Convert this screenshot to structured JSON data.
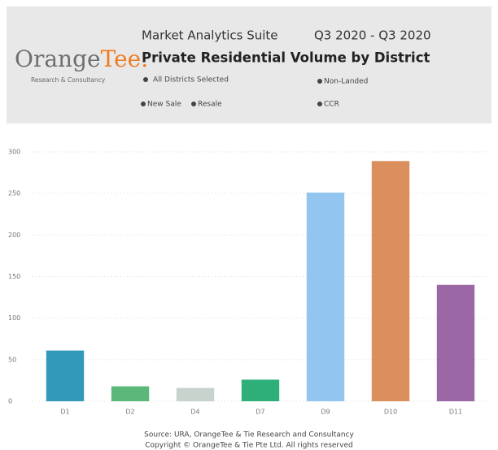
{
  "header": {
    "logo_part1": "Orange",
    "logo_part2": "Tee.",
    "logo_subtitle": "Research & Consultancy",
    "suite": "Market Analytics Suite",
    "period": "Q3 2020 - Q3 2020",
    "filters": [
      "All Districts Selected",
      "Non-Landed",
      "New Sale",
      "Resale",
      "CCR"
    ]
  },
  "chart_data": {
    "type": "bar",
    "title": "Private Residential Volume by District",
    "categories": [
      "D1",
      "D2",
      "D4",
      "D7",
      "D9",
      "D10",
      "D11"
    ],
    "values": [
      61,
      18,
      16,
      26,
      251,
      289,
      140
    ],
    "colors": [
      "#3399bb",
      "#5cb87a",
      "#c8d3cd",
      "#2eaf7a",
      "#92c5ef",
      "#da8f5c",
      "#9b67a4"
    ],
    "ylim": [
      0,
      300
    ],
    "yticks": [
      0,
      50,
      100,
      150,
      200,
      250,
      300
    ],
    "grid": true
  },
  "footer": {
    "source": "Source: URA, OrangeTee & Tie Research and Consultancy",
    "copyright": "Copyright © OrangeTee & Tie Pte Ltd. All rights reserved"
  }
}
